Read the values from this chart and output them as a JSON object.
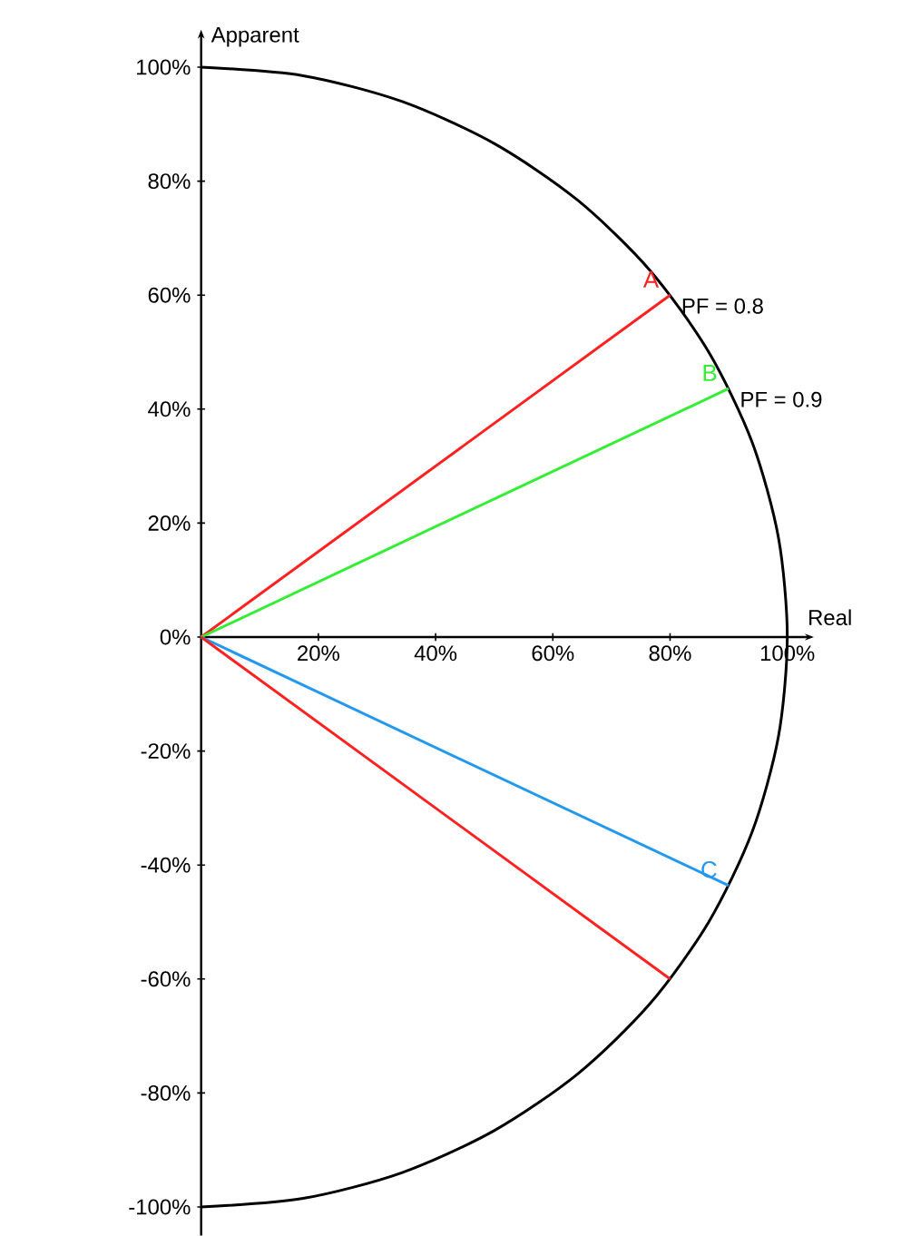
{
  "chart_data": {
    "type": "line",
    "xlabel": "Real",
    "ylabel": "Apparent",
    "xlim": [
      0,
      103
    ],
    "ylim": [
      -105,
      105
    ],
    "xticks": [
      {
        "value": 20,
        "label": "20%"
      },
      {
        "value": 40,
        "label": "40%"
      },
      {
        "value": 60,
        "label": "60%"
      },
      {
        "value": 80,
        "label": "80%"
      },
      {
        "value": 100,
        "label": "100%"
      }
    ],
    "yticks": [
      {
        "value": -100,
        "label": "-100%"
      },
      {
        "value": -80,
        "label": "-80%"
      },
      {
        "value": -60,
        "label": "-60%"
      },
      {
        "value": -40,
        "label": "-40%"
      },
      {
        "value": -20,
        "label": "-20%"
      },
      {
        "value": 0,
        "label": "0%"
      },
      {
        "value": 20,
        "label": "20%"
      },
      {
        "value": 40,
        "label": "40%"
      },
      {
        "value": 60,
        "label": "60%"
      },
      {
        "value": 80,
        "label": "80%"
      },
      {
        "value": 100,
        "label": "100%"
      }
    ],
    "grid": false,
    "line_style": "solid",
    "series": [
      {
        "color": "#000000",
        "x": [
          0,
          17.4,
          34.2,
          50,
          64.3,
          76.6,
          86.6,
          94,
          98.5,
          100,
          98.5,
          94,
          86.6,
          76.6,
          64.3,
          50,
          34.2,
          17.4,
          0
        ],
        "values": [
          100,
          98.5,
          94,
          86.6,
          76.6,
          64.3,
          50,
          34.2,
          17.4,
          0,
          -17.4,
          -34.2,
          -50,
          -64.3,
          -76.6,
          -86.6,
          -94,
          -98.5,
          -100
        ]
      },
      {
        "name": "A",
        "color": "#ff2020",
        "x": [
          0,
          80
        ],
        "values": [
          0,
          60
        ]
      },
      {
        "name": "B",
        "color": "#33ee33",
        "x": [
          0,
          90
        ],
        "values": [
          0,
          43.6
        ]
      },
      {
        "name": "C",
        "color": "#2299ee",
        "x": [
          0,
          90
        ],
        "values": [
          0,
          -43.6
        ]
      },
      {
        "color": "#ff2020",
        "x": [
          0,
          80
        ],
        "values": [
          0,
          -60
        ]
      }
    ],
    "annotations": [
      {
        "text": "PF = 0.8",
        "x": 80,
        "y": 60
      },
      {
        "text": "PF = 0.9",
        "x": 90,
        "y": 43.6
      }
    ]
  }
}
